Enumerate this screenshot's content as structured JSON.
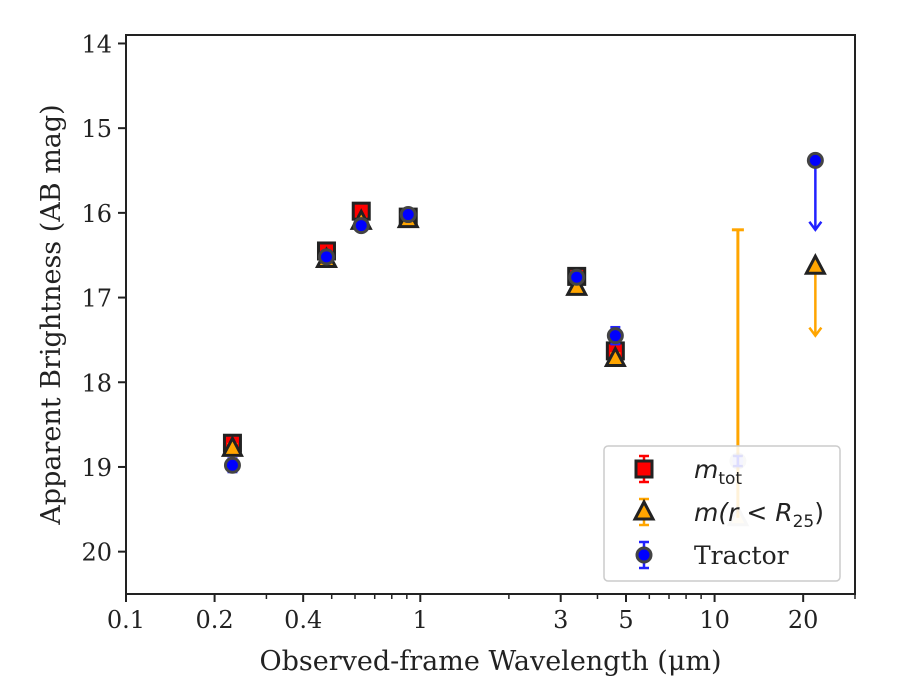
{
  "chart_data": {
    "type": "scatter",
    "title": "",
    "xlabel": "Observed-frame Wavelength (μm)",
    "ylabel": "Apparent Brightness (AB mag)",
    "xscale": "log",
    "xlim": [
      0.1,
      30
    ],
    "ylim": [
      20.5,
      13.9
    ],
    "y_inverted": true,
    "grid": false,
    "legend_position": "lower-right",
    "x_ticks": [
      {
        "value": 0.1,
        "label": "0.1"
      },
      {
        "value": 0.2,
        "label": "0.2"
      },
      {
        "value": 0.4,
        "label": "0.4"
      },
      {
        "value": 1,
        "label": "1"
      },
      {
        "value": 3,
        "label": "3"
      },
      {
        "value": 5,
        "label": "5"
      },
      {
        "value": 10,
        "label": "10"
      },
      {
        "value": 20,
        "label": "20"
      }
    ],
    "y_ticks": [
      {
        "value": 14,
        "label": "14"
      },
      {
        "value": 15,
        "label": "15"
      },
      {
        "value": 16,
        "label": "16"
      },
      {
        "value": 17,
        "label": "17"
      },
      {
        "value": 18,
        "label": "18"
      },
      {
        "value": 19,
        "label": "19"
      },
      {
        "value": 20,
        "label": "20"
      }
    ],
    "series": [
      {
        "name": "m_tot",
        "legend_label": "m",
        "legend_sub": "tot",
        "marker": "square",
        "color": "#ff0000",
        "edge": "#222222",
        "points": [
          {
            "x": 0.23,
            "y": 18.72,
            "err": 0.06
          },
          {
            "x": 0.48,
            "y": 16.45,
            "err": 0.05
          },
          {
            "x": 0.63,
            "y": 15.98,
            "err": 0.04
          },
          {
            "x": 0.91,
            "y": 16.05,
            "err": 0.04
          },
          {
            "x": 3.4,
            "y": 16.75,
            "err": 0.05
          },
          {
            "x": 4.6,
            "y": 17.63,
            "err": 0.08
          }
        ]
      },
      {
        "name": "m(r<R25)",
        "legend_label": "m(r < R",
        "legend_sub": "25",
        "legend_close": ")",
        "marker": "triangle",
        "color": "#ffa500",
        "edge": "#222222",
        "points": [
          {
            "x": 0.23,
            "y": 18.78,
            "err": 0.05
          },
          {
            "x": 0.48,
            "y": 16.55,
            "err": 0.05
          },
          {
            "x": 0.63,
            "y": 16.1,
            "err": 0.04
          },
          {
            "x": 0.91,
            "y": 16.08,
            "err": 0.04
          },
          {
            "x": 3.4,
            "y": 16.88,
            "err": 0.05
          },
          {
            "x": 4.6,
            "y": 17.72,
            "err": 0.06
          },
          {
            "x": 12,
            "y": 19.6,
            "err_low": 0.0,
            "err_high": 3.4,
            "faded": true
          },
          {
            "x": 22,
            "y": 16.63,
            "upper_limit": true,
            "arrow_to": 17.45
          }
        ]
      },
      {
        "name": "Tractor",
        "legend_label": "Tractor",
        "marker": "circle",
        "color": "#0000ff",
        "edge": "#222222",
        "points": [
          {
            "x": 0.23,
            "y": 18.98,
            "err": 0.08
          },
          {
            "x": 0.48,
            "y": 16.52,
            "err": 0.05
          },
          {
            "x": 0.63,
            "y": 16.15,
            "err": 0.04
          },
          {
            "x": 0.91,
            "y": 16.02,
            "err": 0.06
          },
          {
            "x": 3.4,
            "y": 16.76,
            "err": 0.05
          },
          {
            "x": 4.6,
            "y": 17.45,
            "err": 0.1
          },
          {
            "x": 12,
            "y": 18.93,
            "err": 0.06,
            "faded": true
          },
          {
            "x": 22,
            "y": 15.38,
            "upper_limit": true,
            "arrow_to": 16.2
          }
        ]
      }
    ]
  }
}
